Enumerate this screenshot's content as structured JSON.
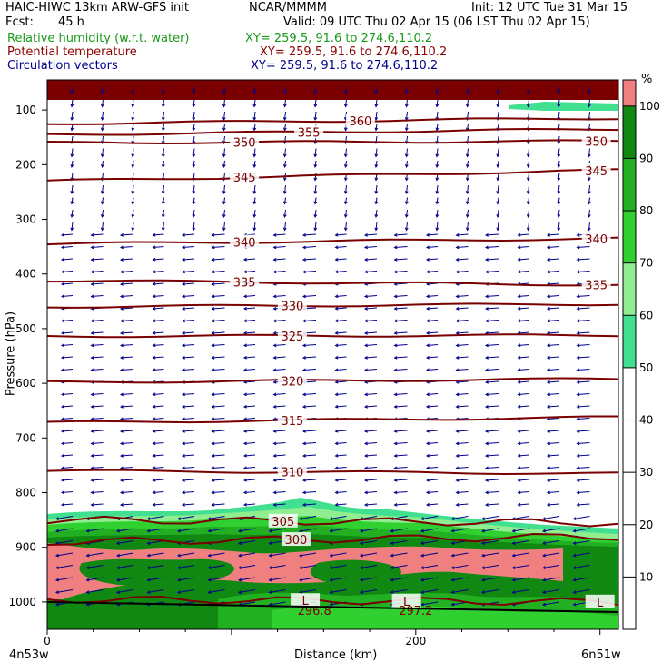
{
  "header": {
    "model": "HAIC-HIWC 13km ARW-GFS init",
    "org": "NCAR/MMMM",
    "init": "Init: 12 UTC Tue 31 Mar 15",
    "fcst_label": "Fcst:",
    "fcst_value": "45 h",
    "valid": "Valid: 09 UTC Thu 02 Apr 15 (06 LST Thu 02 Apr 15)",
    "fields": [
      {
        "label": "Relative humidity (w.r.t. water)",
        "xy": "XY= 259.5, 91.6 to 274.6,110.2",
        "color": "#1a9a1a"
      },
      {
        "label": "Potential temperature",
        "xy": "XY= 259.5, 91.6 to 274.6,110.2",
        "color": "#8b0000"
      },
      {
        "label": "Circulation vectors",
        "xy": "XY= 259.5, 91.6 to 274.6,110.2",
        "color": "#00008b"
      }
    ]
  },
  "chart_data": {
    "type": "contour-cross-section",
    "xlabel": "Distance (km)",
    "ylabel": "Pressure (hPa)",
    "x_ticks": [
      0,
      200
    ],
    "x_end_labels": {
      "left": "4n53w",
      "right": "6n51w"
    },
    "y_ticks": [
      100,
      200,
      300,
      400,
      500,
      600,
      700,
      800,
      900,
      1000
    ],
    "xlim": [
      0,
      310
    ],
    "ylim": [
      1050,
      45
    ],
    "colorbar": {
      "unit": "%",
      "ticks": [
        10,
        20,
        30,
        40,
        50,
        60,
        70,
        80,
        90,
        100
      ],
      "bands": [
        {
          "from": 50,
          "to": 60,
          "color": "#40e090"
        },
        {
          "from": 60,
          "to": 70,
          "color": "#90ee90"
        },
        {
          "from": 70,
          "to": 80,
          "color": "#30d030"
        },
        {
          "from": 80,
          "to": 90,
          "color": "#22b022"
        },
        {
          "from": 90,
          "to": 100,
          "color": "#118811"
        },
        {
          "from": 100,
          "to": 105,
          "color": "#f08080"
        }
      ]
    },
    "theta_contours": [
      {
        "value": 297,
        "p": [
          995,
          1000
        ],
        "labels": [
          {
            "text": "L",
            "x": 140
          },
          {
            "text": "L",
            "x": 195
          },
          {
            "text": "L",
            "x": 300
          }
        ]
      },
      {
        "value": 300,
        "p": [
          890,
          880
        ],
        "labels": [
          {
            "text": "300",
            "x": 135
          }
        ]
      },
      {
        "value": 305,
        "p": [
          850,
          855
        ],
        "labels": [
          {
            "text": "305",
            "x": 128
          }
        ]
      },
      {
        "value": 310,
        "p": [
          760,
          765
        ],
        "labels": [
          {
            "text": "310",
            "x": 133
          }
        ]
      },
      {
        "value": 315,
        "p": [
          672,
          662
        ],
        "labels": [
          {
            "text": "315",
            "x": 133
          }
        ]
      },
      {
        "value": 320,
        "p": [
          598,
          592
        ],
        "labels": [
          {
            "text": "320",
            "x": 133
          }
        ]
      },
      {
        "value": 325,
        "p": [
          514,
          512
        ],
        "labels": [
          {
            "text": "325",
            "x": 133
          }
        ]
      },
      {
        "value": 330,
        "p": [
          460,
          455
        ],
        "labels": [
          {
            "text": "330",
            "x": 133
          }
        ]
      },
      {
        "value": 335,
        "p": [
          412,
          420
        ],
        "labels": [
          {
            "text": "335",
            "x": 107
          },
          {
            "text": "335",
            "x": 298
          }
        ]
      },
      {
        "value": 340,
        "p": [
          345,
          335
        ],
        "labels": [
          {
            "text": "340",
            "x": 107
          },
          {
            "text": "340",
            "x": 298
          }
        ]
      },
      {
        "value": 345,
        "p": [
          230,
          210
        ],
        "labels": [
          {
            "text": "345",
            "x": 107
          },
          {
            "text": "345",
            "x": 298
          }
        ]
      },
      {
        "value": 350,
        "p": [
          160,
          157
        ],
        "labels": [
          {
            "text": "350",
            "x": 107
          },
          {
            "text": "350",
            "x": 298
          }
        ]
      },
      {
        "value": 355,
        "p": [
          145,
          135
        ],
        "labels": [
          {
            "text": "355",
            "x": 142
          }
        ]
      },
      {
        "value": 360,
        "p": [
          125,
          115
        ],
        "labels": [
          {
            "text": "360",
            "x": 170
          }
        ]
      }
    ],
    "extra_labels": [
      {
        "text": "296.8",
        "x": 145,
        "p": 1015
      },
      {
        "text": "297.2",
        "x": 200,
        "p": 1015
      }
    ]
  }
}
